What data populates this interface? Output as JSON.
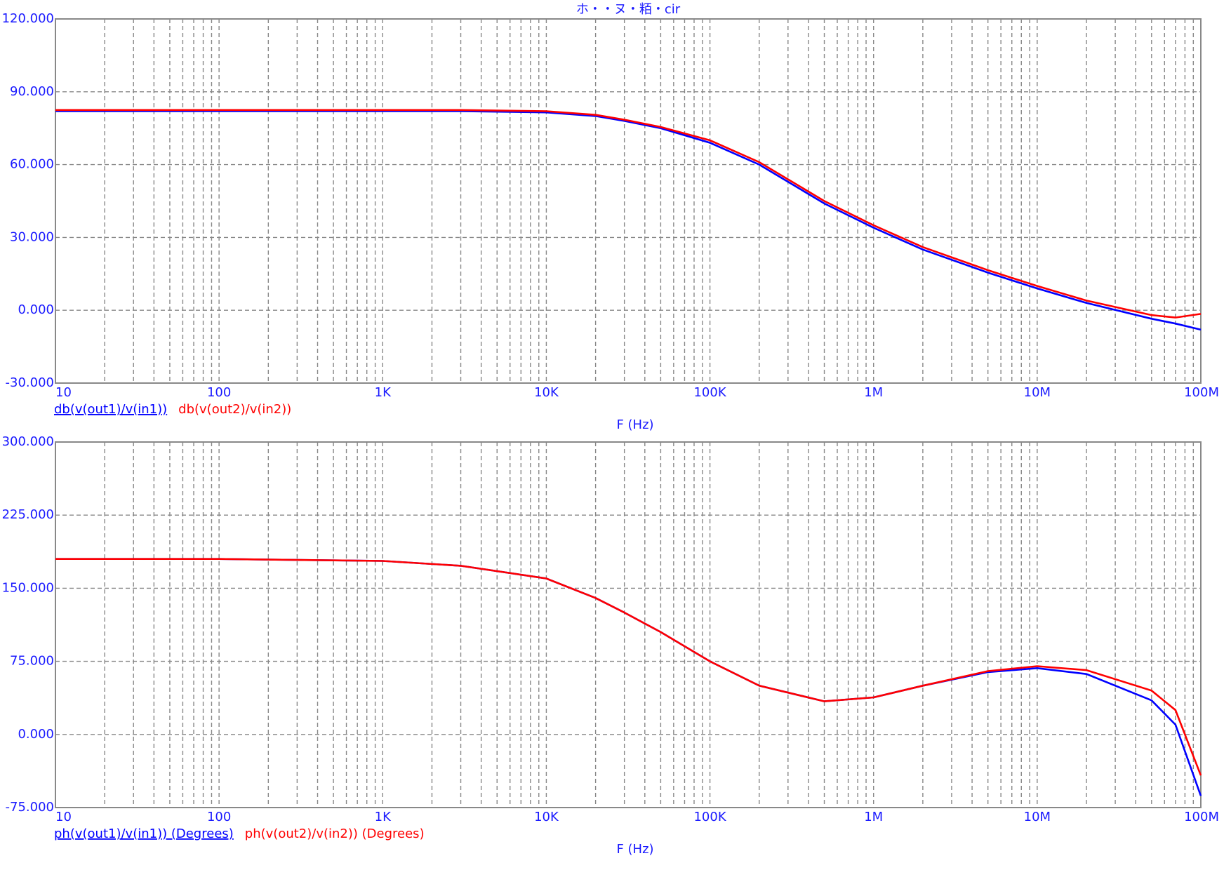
{
  "chart_data": [
    {
      "type": "line",
      "title": "ホ・・ヌ・粨・cir",
      "xlabel": "F (Hz)",
      "xscale": "log",
      "grid": true,
      "x": [
        10,
        100,
        1000,
        3000,
        10000,
        20000,
        30000,
        50000,
        100000,
        200000,
        500000,
        1000000,
        2000000,
        5000000,
        10000000,
        20000000,
        50000000,
        70000000,
        100000000
      ],
      "xlim": [
        10,
        100000000
      ],
      "xticks": [
        {
          "value": 10,
          "label": "10"
        },
        {
          "value": 100,
          "label": "100"
        },
        {
          "value": 1000,
          "label": "1K"
        },
        {
          "value": 10000,
          "label": "10K"
        },
        {
          "value": 100000,
          "label": "100K"
        },
        {
          "value": 1000000,
          "label": "1M"
        },
        {
          "value": 10000000,
          "label": "10M"
        },
        {
          "value": 100000000,
          "label": "100M"
        }
      ],
      "ylim": [
        -30,
        120
      ],
      "yticks": [
        {
          "value": -30,
          "label": "-30.000"
        },
        {
          "value": 0,
          "label": "0.000"
        },
        {
          "value": 30,
          "label": "30.000"
        },
        {
          "value": 60,
          "label": "60.000"
        },
        {
          "value": 90,
          "label": "90.000"
        },
        {
          "value": 120,
          "label": "120.000"
        }
      ],
      "series": [
        {
          "name": "db(v(out1)/v(in1))",
          "color": "#0000ff",
          "values": [
            82,
            82,
            82,
            82,
            81.5,
            80,
            78,
            75,
            69,
            60,
            44,
            34,
            25,
            15.5,
            9,
            3,
            -3.5,
            -5.5,
            -8
          ]
        },
        {
          "name": "db(v(out2)/v(in2))",
          "color": "#ff0000",
          "values": [
            82.5,
            82.5,
            82.5,
            82.5,
            82,
            80.5,
            78.5,
            75.5,
            70,
            61,
            45,
            35,
            26,
            16.5,
            10,
            4,
            -2,
            -3,
            -1.5
          ]
        }
      ]
    },
    {
      "type": "line",
      "xlabel": "F (Hz)",
      "xscale": "log",
      "grid": true,
      "x": [
        10,
        100,
        1000,
        3000,
        10000,
        20000,
        30000,
        50000,
        100000,
        200000,
        500000,
        1000000,
        2000000,
        5000000,
        10000000,
        20000000,
        50000000,
        70000000,
        100000000
      ],
      "xlim": [
        10,
        100000000
      ],
      "xticks": [
        {
          "value": 10,
          "label": "10"
        },
        {
          "value": 100,
          "label": "100"
        },
        {
          "value": 1000,
          "label": "1K"
        },
        {
          "value": 10000,
          "label": "10K"
        },
        {
          "value": 100000,
          "label": "100K"
        },
        {
          "value": 1000000,
          "label": "1M"
        },
        {
          "value": 10000000,
          "label": "10M"
        },
        {
          "value": 100000000,
          "label": "100M"
        }
      ],
      "ylim": [
        -75,
        300
      ],
      "yticks": [
        {
          "value": -75,
          "label": "-75.000"
        },
        {
          "value": 0,
          "label": "0.000"
        },
        {
          "value": 75,
          "label": "75.000"
        },
        {
          "value": 150,
          "label": "150.000"
        },
        {
          "value": 225,
          "label": "225.000"
        },
        {
          "value": 300,
          "label": "300.000"
        }
      ],
      "series": [
        {
          "name": "ph(v(out1)/v(in1)) (Degrees)",
          "color": "#0000ff",
          "values": [
            180,
            180,
            178,
            173,
            160,
            140,
            125,
            105,
            75,
            50,
            34,
            38,
            50,
            64,
            68,
            62,
            35,
            10,
            -63
          ]
        },
        {
          "name": "ph(v(out2)/v(in2)) (Degrees)",
          "color": "#ff0000",
          "values": [
            180,
            180,
            178,
            173,
            160,
            140,
            125,
            105,
            75,
            50,
            34,
            38,
            50,
            65,
            70,
            66,
            45,
            25,
            -42
          ]
        }
      ]
    }
  ]
}
